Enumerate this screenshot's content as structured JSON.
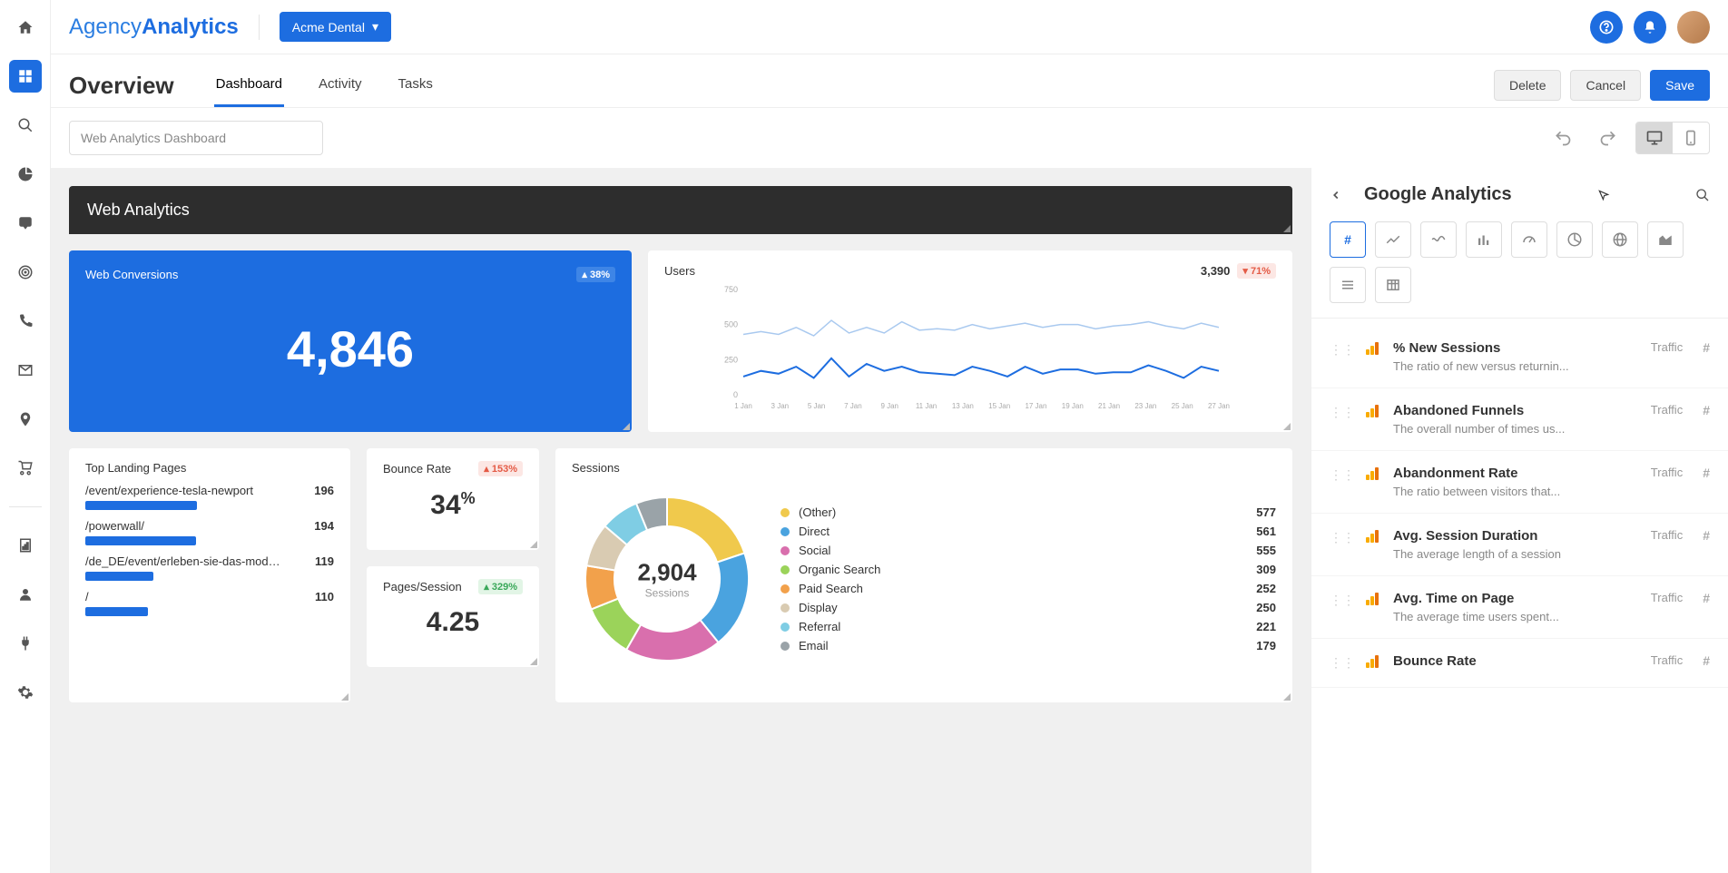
{
  "brand": {
    "part1": "Agency",
    "part2": "Analytics"
  },
  "account": {
    "name": "Acme Dental"
  },
  "page": {
    "title": "Overview"
  },
  "tabs": [
    {
      "label": "Dashboard",
      "active": true
    },
    {
      "label": "Activity",
      "active": false
    },
    {
      "label": "Tasks",
      "active": false
    }
  ],
  "actions": {
    "delete": "Delete",
    "cancel": "Cancel",
    "save": "Save"
  },
  "dash_name_placeholder": "Web Analytics Dashboard",
  "section_header": "Web Analytics",
  "conversions_card": {
    "label": "Web Conversions",
    "badge": "▴ 38%",
    "value": "4,846",
    "bg_color": "#1d6de0"
  },
  "users_chart": {
    "label": "Users",
    "value": "3,390",
    "badge": "▾ 71%",
    "y_ticks": [
      "750",
      "500",
      "250",
      "0"
    ],
    "x_labels": [
      "1 Jan",
      "3 Jan",
      "5 Jan",
      "7 Jan",
      "9 Jan",
      "11 Jan",
      "13 Jan",
      "15 Jan",
      "17 Jan",
      "19 Jan",
      "21 Jan",
      "23 Jan",
      "25 Jan",
      "27 Jan"
    ],
    "ylim": [
      0,
      750
    ],
    "series1_color": "#1d6de0",
    "series2_color": "#a9c9ef",
    "series1": [
      130,
      170,
      150,
      200,
      120,
      260,
      130,
      220,
      170,
      200,
      160,
      150,
      140,
      200,
      170,
      130,
      200,
      150,
      180,
      180,
      150,
      160,
      160,
      210,
      170,
      120,
      200,
      170
    ],
    "series2": [
      430,
      450,
      430,
      480,
      420,
      530,
      440,
      480,
      440,
      520,
      460,
      470,
      460,
      500,
      470,
      490,
      510,
      480,
      500,
      500,
      470,
      490,
      500,
      520,
      490,
      470,
      510,
      480
    ]
  },
  "landing": {
    "title": "Top Landing Pages",
    "max": 196,
    "rows": [
      {
        "path": "/event/experience-tesla-newport",
        "count": 196
      },
      {
        "path": "/powerwall/",
        "count": 194
      },
      {
        "path": "/de_DE/event/erleben-sie-das-model-s-...",
        "count": 119
      },
      {
        "path": "/",
        "count": 110
      }
    ],
    "bar_color": "#1d6de0"
  },
  "bounce": {
    "title": "Bounce Rate",
    "badge": "▴ 153%",
    "value": "34",
    "suffix": "%"
  },
  "pages_session": {
    "title": "Pages/Session",
    "badge": "▴ 329%",
    "value": "4.25"
  },
  "sessions": {
    "title": "Sessions",
    "total": "2,904",
    "sub": "Sessions",
    "slices": [
      {
        "label": "(Other)",
        "value": 577,
        "color": "#f0c94c"
      },
      {
        "label": "Direct",
        "value": 561,
        "color": "#4aa3df"
      },
      {
        "label": "Social",
        "value": 555,
        "color": "#d96fad"
      },
      {
        "label": "Organic Search",
        "value": 309,
        "color": "#9bd35a"
      },
      {
        "label": "Paid Search",
        "value": 252,
        "color": "#f2a14b"
      },
      {
        "label": "Display",
        "value": 250,
        "color": "#d9cbb2"
      },
      {
        "label": "Referral",
        "value": 221,
        "color": "#7fcde4"
      },
      {
        "label": "Email",
        "value": 179,
        "color": "#9aa3a8"
      }
    ]
  },
  "sidepanel": {
    "title": "Google Analytics",
    "metrics": [
      {
        "title": "% New Sessions",
        "desc": "The ratio of new versus returnin...",
        "cat": "Traffic"
      },
      {
        "title": "Abandoned Funnels",
        "desc": "The overall number of times us...",
        "cat": "Traffic"
      },
      {
        "title": "Abandonment Rate",
        "desc": "The ratio between visitors that...",
        "cat": "Traffic"
      },
      {
        "title": "Avg. Session Duration",
        "desc": "The average length of a session",
        "cat": "Traffic"
      },
      {
        "title": "Avg. Time on Page",
        "desc": "The average time users spent...",
        "cat": "Traffic"
      },
      {
        "title": "Bounce Rate",
        "desc": "",
        "cat": "Traffic"
      }
    ]
  }
}
